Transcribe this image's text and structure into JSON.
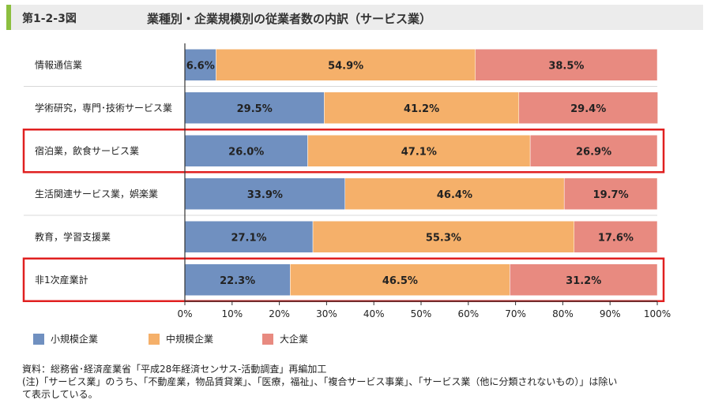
{
  "header": {
    "figure_number": "第1-2-3図",
    "title": "業種別・企業規模別の従業者数の内訳（サービス業）"
  },
  "chart_data": {
    "type": "bar",
    "orientation": "horizontal",
    "stacked": true,
    "categories": [
      "情報通信業",
      "学術研究，専門･技術サービス業",
      "宿泊業，飲食サービス業",
      "生活関連サービス業，娯楽業",
      "教育，学習支援業",
      "非1次産業計"
    ],
    "series": [
      {
        "name": "小規模企業",
        "color": "#7090c0",
        "values": [
          6.6,
          29.5,
          26.0,
          33.9,
          27.1,
          22.3
        ]
      },
      {
        "name": "中規模企業",
        "color": "#f5b06a",
        "values": [
          54.9,
          41.2,
          47.1,
          46.4,
          55.3,
          46.5
        ]
      },
      {
        "name": "大企業",
        "color": "#e88a80",
        "values": [
          38.5,
          29.4,
          26.9,
          19.7,
          17.6,
          31.2
        ]
      }
    ],
    "xlim": [
      0,
      100
    ],
    "xticks": [
      "0%",
      "10%",
      "20%",
      "30%",
      "40%",
      "50%",
      "60%",
      "70%",
      "80%",
      "90%",
      "100%"
    ],
    "highlighted_categories": [
      "宿泊業，飲食サービス業",
      "非1次産業計"
    ],
    "highlight_color": "#e02020",
    "legend_position": "bottom-left"
  },
  "notes": [
    "資料：総務省･経済産業省「平成28年経済センサス-活動調査」再編加工",
    "(注)「サービス業」のうち、「不動産業，物品賃貸業」、「医療，福祉」、「複合サービス事業」、「サービス業（他に分類されないもの）」は除い",
    "て表示している。"
  ]
}
